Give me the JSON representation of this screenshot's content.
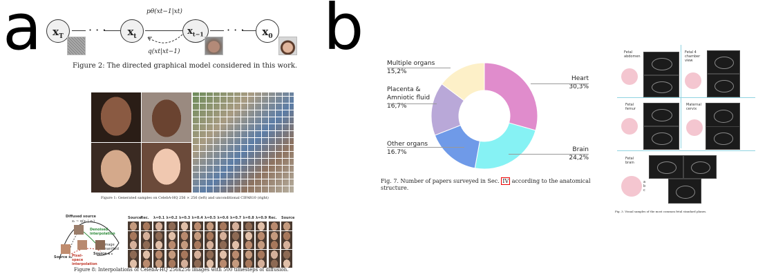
{
  "panel_a": {
    "letter": "a",
    "nodes": {
      "xT": "x",
      "xT_sub": "T",
      "xt": "x",
      "xt_sub": "t",
      "xt1": "x",
      "xt1_sub": "t−1",
      "x0": "x",
      "x0_sub": "0"
    },
    "arrow_top": "pθ(xt−1|xt)",
    "arrow_bottom": "q(xt|xt−1)",
    "fig2_caption": "Figure 2: The directed graphical model considered in this work.",
    "fig1_caption": "Figure 1: Generated samples on CelebA-HQ 256 × 256 (left) and unconditional CIFAR10 (right)",
    "fig8": {
      "diffused_source": "Diffused source",
      "diffused_eq": "xₜ ~ q(xₜ | x₀)",
      "denoised": "Denoised interpolation",
      "image_manifold": "Image manifold",
      "source_left": "Source x₀",
      "source_right": "Source x′₀",
      "pixel_space": "Pixel-space interpolation",
      "col_headers": [
        "Source",
        "Rec.",
        "λ=0.1",
        "λ=0.2",
        "λ=0.3",
        "λ=0.4",
        "λ=0.5",
        "λ=0.6",
        "λ=0.7",
        "λ=0.8",
        "λ=0.9",
        "Rec.",
        "Source"
      ],
      "caption": "Figure 8: Interpolations of CelebA-HQ 256x256 images with 500 timesteps of diffusion."
    }
  },
  "panel_b": {
    "letter": "b",
    "chart_data": {
      "type": "pie",
      "donut": true,
      "categories": [
        "Heart",
        "Brain",
        "Other organs",
        "Placenta & Amniotic fluid",
        "Multiple organs"
      ],
      "values": [
        30.3,
        24.2,
        16.7,
        16.7,
        15.2
      ],
      "value_labels": [
        "30,3%",
        "24,2%",
        "16.7%",
        "16,7%",
        "15,2%"
      ],
      "colors": [
        "#e08ccc",
        "#86f2f4",
        "#6f9ae8",
        "#b9a8d8",
        "#fdf0c8"
      ],
      "label_lines": [
        [
          "Heart"
        ],
        [
          "Brain"
        ],
        [
          "Other organs"
        ],
        [
          "Placenta &",
          "Amniotic fluid"
        ],
        [
          "Multiple organs"
        ]
      ]
    },
    "fig7_caption_pre": "Fig. 7.  Number of papers surveyed in Sec.",
    "fig7_ref": "IV",
    "fig7_caption_post": "according to the anatomical",
    "fig7_caption_line2": "structure.",
    "planes": {
      "fetal_abdomen": "Fetal abdomen",
      "fetal_4ch": "Fetal 4 chamber view",
      "fetal_femur": "Fetal femur",
      "maternal_cervix": "Maternal cervix",
      "fetal_brain": "Fetal brain",
      "brain_letters": [
        "a",
        "b",
        "c"
      ],
      "caption": "Fig. 3.   Visual samples of the most common fetal standard planes."
    }
  }
}
